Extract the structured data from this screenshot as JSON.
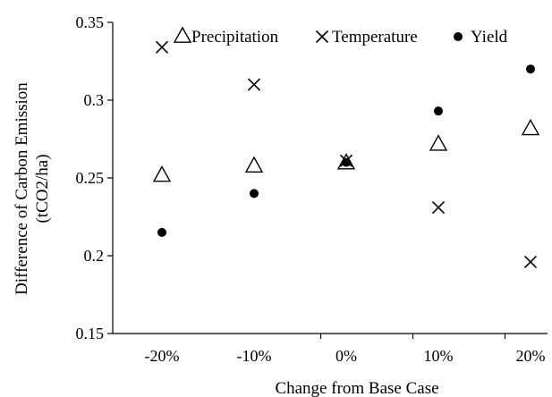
{
  "chart_data": {
    "type": "scatter",
    "title": "",
    "xlabel": "Change from Base Case",
    "ylabel_line1": "Difference of Carbon Emission",
    "ylabel_line2": "(tCO2/ha)",
    "categories": [
      "-20%",
      "-10%",
      "0%",
      "10%",
      "20%"
    ],
    "ylim": [
      0.15,
      0.35
    ],
    "yticks": [
      0.15,
      0.2,
      0.25,
      0.3,
      0.35
    ],
    "ytick_labels": [
      "0.15",
      "0.2",
      "0.25",
      "0.3",
      "0.35"
    ],
    "grid": false,
    "legend_position": "top",
    "series": [
      {
        "name": "Precipitation",
        "marker": "triangle-open",
        "values": [
          0.252,
          0.258,
          0.26,
          0.272,
          0.282
        ]
      },
      {
        "name": "Temperature",
        "marker": "cross",
        "values": [
          0.334,
          0.31,
          0.261,
          0.231,
          0.196
        ]
      },
      {
        "name": "Yield",
        "marker": "dot-filled",
        "values": [
          0.215,
          0.24,
          0.26,
          0.293,
          0.32
        ]
      }
    ]
  }
}
